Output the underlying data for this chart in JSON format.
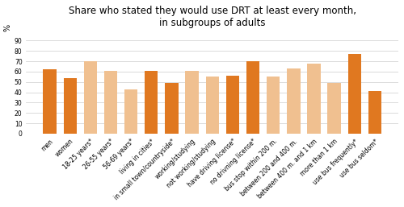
{
  "title": "Share who stated they would use DRT at least every month,\nin subgroups of adults",
  "ylabel": "%",
  "categories": [
    "men",
    "women",
    "18-25 years*",
    "26-55 years*",
    "56-69 years*",
    "living in cities*",
    "in small town/countryside*",
    "working/studying",
    "not working/studying",
    "have driving license*",
    "no drivning license*",
    "bus stop within 200 m.",
    "between 200 and 400 m.",
    "between 400 m. and 1 km",
    "more than 1 km",
    "use bus frequently*",
    "use bus seldom*"
  ],
  "values": [
    62,
    54,
    70,
    61,
    43,
    61,
    49,
    61,
    55,
    56,
    70,
    55,
    63,
    68,
    49,
    77,
    41
  ],
  "colors": [
    "#E07820",
    "#E07820",
    "#F0C090",
    "#F0C090",
    "#F0C090",
    "#E07820",
    "#E07820",
    "#F0C090",
    "#F0C090",
    "#E07820",
    "#E07820",
    "#F0C090",
    "#F0C090",
    "#F0C090",
    "#F0C090",
    "#E07820",
    "#E07820"
  ],
  "ylim": [
    0,
    100
  ],
  "yticks": [
    0,
    10,
    20,
    30,
    40,
    50,
    60,
    70,
    80,
    90
  ],
  "title_fontsize": 8.5,
  "tick_fontsize": 5.5,
  "ylabel_fontsize": 7,
  "bar_width": 0.65,
  "figsize": [
    5.0,
    2.57
  ],
  "dpi": 100,
  "background_color": "#ffffff",
  "grid_color": "#cccccc"
}
